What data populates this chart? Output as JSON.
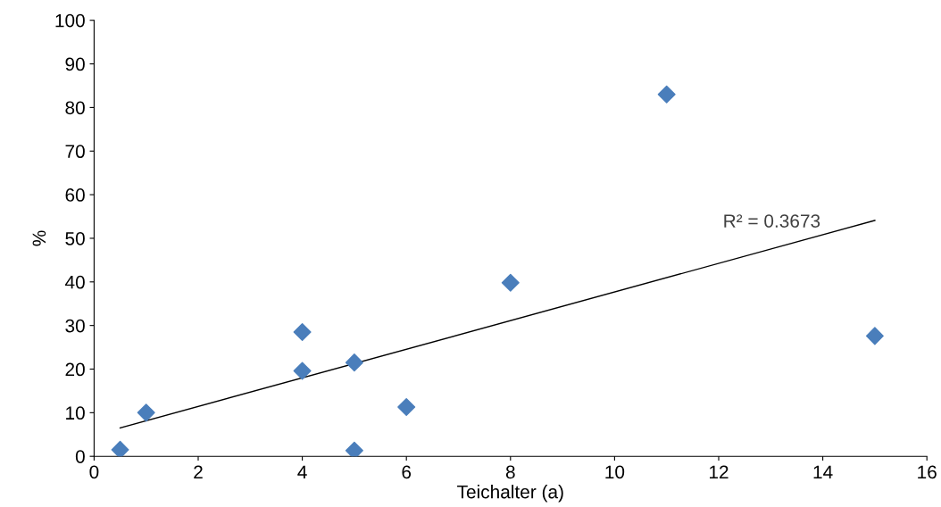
{
  "chart_data": {
    "type": "scatter",
    "xlabel": "Teichalter (a)",
    "ylabel": "%",
    "x": [
      0.5,
      1,
      4,
      4,
      5,
      5,
      6,
      8,
      11,
      15
    ],
    "series": [
      {
        "color": "#4a7ebb",
        "marker": "diamond",
        "values": [
          1.5,
          10.0,
          28.5,
          19.6,
          21.5,
          1.3,
          11.3,
          39.8,
          83.0,
          27.6
        ]
      },
      {
        "type": "line",
        "color": "#000000",
        "marker": "none",
        "x": [
          0.5,
          15
        ],
        "values": [
          6.5,
          54.1
        ]
      }
    ],
    "annotations": [
      "R² = 0.3673"
    ],
    "xlim": [
      0,
      16
    ],
    "xticks": [
      0,
      2,
      4,
      6,
      8,
      10,
      12,
      14,
      16
    ],
    "ylim": [
      0,
      100
    ],
    "yticks": [
      0,
      10,
      20,
      30,
      40,
      50,
      60,
      70,
      80,
      90,
      100
    ],
    "grid": false,
    "legend": false
  }
}
